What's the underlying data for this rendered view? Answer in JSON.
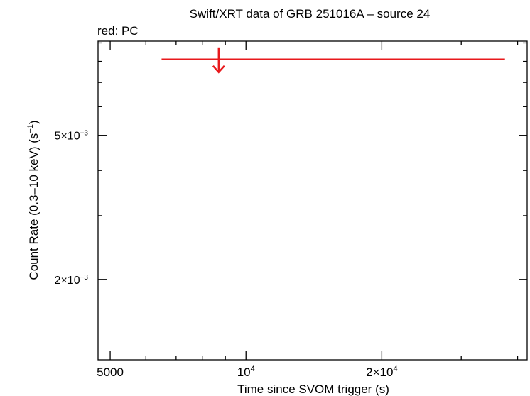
{
  "chart_data": {
    "type": "scatter",
    "title": "Swift/XRT data of GRB 251016A – source 24",
    "subtitle": "red: PC",
    "xlabel": "Time since SVOM trigger (s)",
    "ylabel_main": "Count Rate (0.3–10 keV) (s",
    "ylabel_sup": "−1",
    "ylabel_end": ")",
    "x_scale": "log",
    "y_scale": "log",
    "xlim": [
      4700,
      42000
    ],
    "ylim": [
      0.0012,
      0.0091
    ],
    "x_tick_labels": [
      {
        "value": 5000,
        "base": "5000",
        "sup": ""
      },
      {
        "value": 10000,
        "base": "10",
        "sup": "4"
      },
      {
        "value": 20000,
        "base": "2×10",
        "sup": "4"
      }
    ],
    "y_tick_labels": [
      {
        "value": 0.005,
        "base": "5×10",
        "sup": "−3"
      },
      {
        "value": 0.002,
        "base": "2×10",
        "sup": "−3"
      }
    ],
    "series": [
      {
        "color": "#e8191c",
        "upper_limit": true,
        "points": [
          {
            "x": 8700,
            "x_lo": 6500,
            "x_hi": 37500,
            "y": 0.0081
          }
        ]
      }
    ],
    "grid": false,
    "legend": "none"
  }
}
